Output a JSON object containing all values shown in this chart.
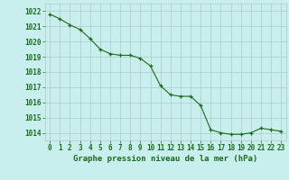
{
  "x": [
    0,
    1,
    2,
    3,
    4,
    5,
    6,
    7,
    8,
    9,
    10,
    11,
    12,
    13,
    14,
    15,
    16,
    17,
    18,
    19,
    20,
    21,
    22,
    23
  ],
  "y": [
    1021.8,
    1021.5,
    1021.1,
    1020.8,
    1020.2,
    1019.5,
    1019.2,
    1019.1,
    1019.1,
    1018.9,
    1018.4,
    1017.1,
    1016.5,
    1016.4,
    1016.4,
    1015.8,
    1014.2,
    1014.0,
    1013.9,
    1013.9,
    1014.0,
    1014.3,
    1014.2,
    1014.1
  ],
  "ylim": [
    1013.5,
    1022.5
  ],
  "yticks": [
    1014,
    1015,
    1016,
    1017,
    1018,
    1019,
    1020,
    1021,
    1022
  ],
  "xticks": [
    0,
    1,
    2,
    3,
    4,
    5,
    6,
    7,
    8,
    9,
    10,
    11,
    12,
    13,
    14,
    15,
    16,
    17,
    18,
    19,
    20,
    21,
    22,
    23
  ],
  "xlabel": "Graphe pression niveau de la mer (hPa)",
  "line_color": "#1a6b1a",
  "marker": "+",
  "marker_color": "#1a6b1a",
  "bg_color": "#c8eeee",
  "grid_color": "#b0c8c8",
  "tick_label_color": "#1a6b1a",
  "xlabel_color": "#1a6b1a",
  "xlabel_fontsize": 6.5,
  "tick_fontsize": 5.5
}
